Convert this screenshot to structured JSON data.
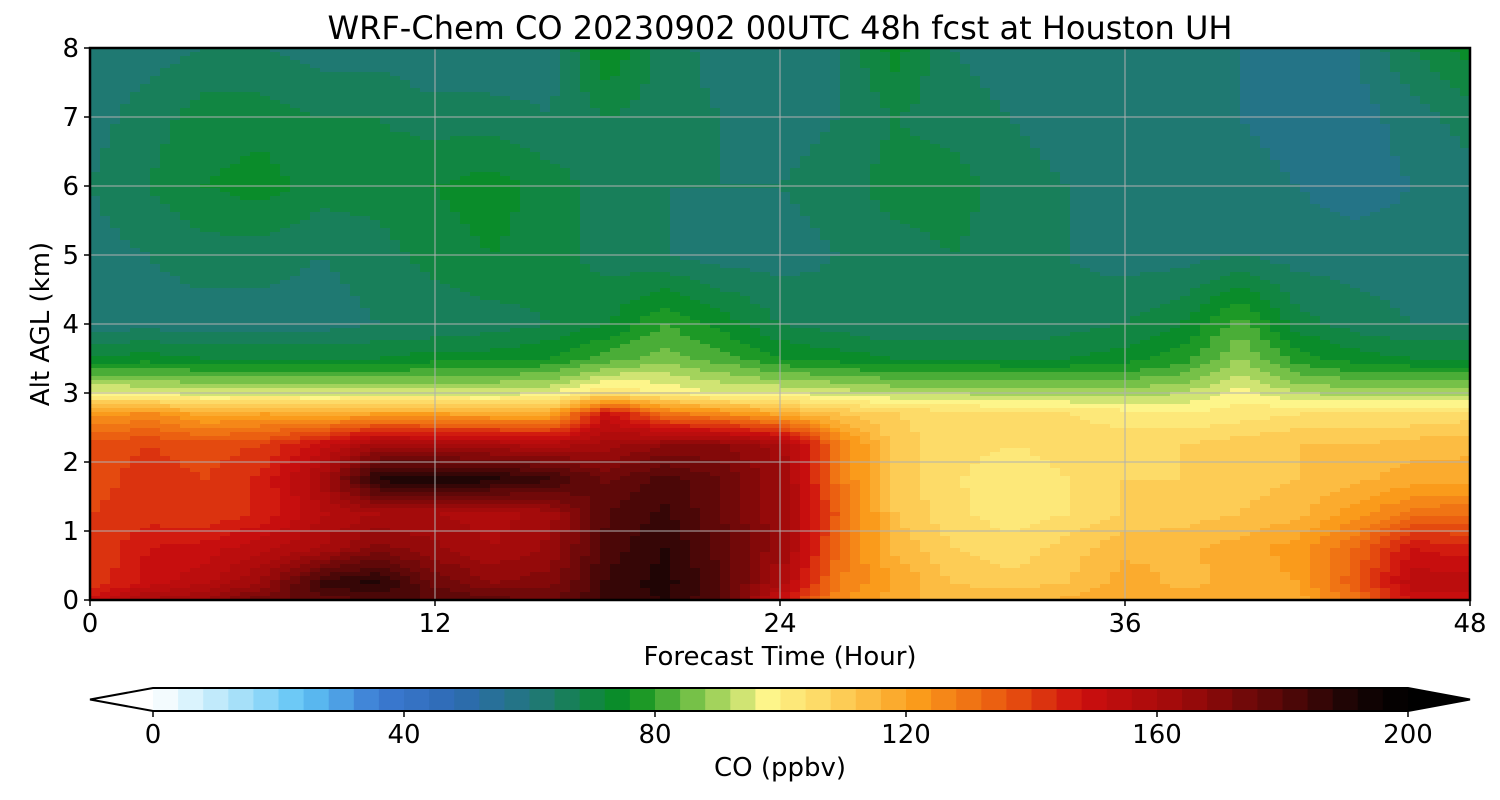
{
  "chart_data": {
    "type": "heatmap",
    "title": "WRF-Chem CO  20230902 00UTC 48h fcst at Houston UH",
    "xlabel": "Forecast Time (Hour)",
    "ylabel": "Alt AGL (km)",
    "xlim": [
      0,
      48
    ],
    "ylim": [
      0,
      8
    ],
    "xticks": [
      0,
      12,
      24,
      36,
      48
    ],
    "yticks": [
      0,
      1,
      2,
      3,
      4,
      5,
      6,
      7,
      8
    ],
    "grid": true,
    "colorbar": {
      "label": "CO  (ppbv)",
      "min": 0,
      "max": 200,
      "ticks": [
        0,
        40,
        80,
        120,
        160,
        200
      ],
      "extend": "both",
      "orientation": "horizontal",
      "location": "bottom"
    },
    "colors": {
      "0": "#ffffff",
      "12": "#b4e6fa",
      "24": "#5fc3f5",
      "36": "#3b7ad2",
      "48": "#2e6ab4",
      "60": "#22767e",
      "76": "#078f1e",
      "88": "#8ccb50",
      "98": "#fdf58a",
      "108": "#fdd45f",
      "122": "#fa9b1b",
      "136": "#e9560f",
      "148": "#cd0f0f",
      "164": "#9e0a0a",
      "180": "#560808",
      "192": "#150404",
      "200": "#000000"
    },
    "x": [
      0,
      2,
      4,
      6,
      8,
      10,
      12,
      14,
      16,
      18,
      20,
      22,
      24,
      26,
      28,
      30,
      32,
      34,
      36,
      38,
      40,
      42,
      44,
      46,
      48
    ],
    "y": [
      0,
      0.25,
      0.75,
      1.25,
      1.75,
      2.25,
      2.7,
      3,
      3.5,
      4,
      5,
      6,
      7,
      8
    ],
    "z": [
      [
        150,
        160,
        165,
        175,
        178,
        180,
        180,
        178,
        175,
        185,
        188,
        180,
        150,
        125,
        117,
        115,
        115,
        117,
        120,
        118,
        117,
        118,
        130,
        150,
        150
      ],
      [
        140,
        150,
        155,
        165,
        185,
        190,
        175,
        168,
        170,
        185,
        190,
        180,
        160,
        128,
        120,
        112,
        110,
        112,
        118,
        115,
        117,
        120,
        135,
        155,
        155
      ],
      [
        140,
        148,
        150,
        155,
        160,
        170,
        165,
        160,
        165,
        182,
        188,
        178,
        165,
        132,
        115,
        108,
        105,
        110,
        115,
        115,
        118,
        122,
        132,
        148,
        145
      ],
      [
        140,
        142,
        140,
        145,
        155,
        160,
        160,
        158,
        162,
        180,
        185,
        176,
        165,
        135,
        112,
        105,
        102,
        104,
        108,
        110,
        112,
        115,
        122,
        130,
        132
      ],
      [
        138,
        142,
        140,
        145,
        160,
        190,
        192,
        190,
        185,
        175,
        182,
        176,
        165,
        130,
        110,
        105,
        100,
        104,
        108,
        108,
        110,
        112,
        115,
        118,
        118
      ],
      [
        138,
        140,
        138,
        140,
        150,
        162,
        160,
        160,
        158,
        162,
        168,
        168,
        162,
        130,
        110,
        106,
        104,
        106,
        106,
        108,
        110,
        112,
        112,
        114,
        115
      ],
      [
        122,
        125,
        118,
        120,
        118,
        120,
        120,
        118,
        118,
        150,
        130,
        125,
        118,
        112,
        108,
        106,
        104,
        104,
        102,
        100,
        102,
        104,
        104,
        104,
        106
      ],
      [
        98,
        96,
        94,
        94,
        94,
        94,
        94,
        94,
        96,
        104,
        100,
        96,
        96,
        94,
        92,
        92,
        90,
        90,
        90,
        92,
        98,
        92,
        90,
        90,
        90
      ],
      [
        72,
        74,
        72,
        72,
        72,
        72,
        74,
        74,
        76,
        82,
        86,
        82,
        76,
        74,
        72,
        72,
        72,
        72,
        74,
        78,
        88,
        78,
        74,
        72,
        72
      ],
      [
        62,
        62,
        62,
        62,
        62,
        64,
        64,
        66,
        68,
        72,
        80,
        74,
        68,
        66,
        64,
        64,
        64,
        66,
        68,
        72,
        82,
        70,
        66,
        64,
        64
      ],
      [
        62,
        64,
        66,
        66,
        64,
        66,
        70,
        72,
        70,
        66,
        64,
        62,
        62,
        64,
        66,
        68,
        66,
        64,
        62,
        62,
        64,
        62,
        62,
        62,
        62
      ],
      [
        64,
        68,
        72,
        74,
        70,
        70,
        72,
        74,
        70,
        66,
        64,
        64,
        64,
        66,
        70,
        70,
        66,
        64,
        62,
        62,
        62,
        60,
        58,
        60,
        62
      ],
      [
        62,
        66,
        70,
        70,
        68,
        68,
        66,
        66,
        64,
        68,
        66,
        64,
        62,
        64,
        68,
        66,
        64,
        62,
        62,
        62,
        60,
        58,
        58,
        62,
        66
      ],
      [
        62,
        62,
        64,
        64,
        62,
        62,
        60,
        60,
        62,
        76,
        66,
        62,
        62,
        64,
        74,
        64,
        62,
        60,
        62,
        62,
        60,
        58,
        60,
        68,
        74
      ]
    ]
  }
}
